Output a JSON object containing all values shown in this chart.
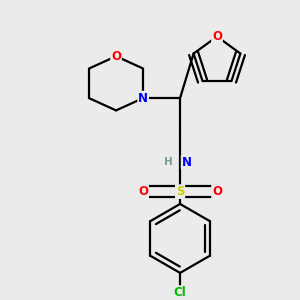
{
  "background_color": "#ebebeb",
  "atom_colors": {
    "O": "#ff0000",
    "N": "#0000ff",
    "S": "#cccc00",
    "Cl": "#00bb00",
    "C": "#000000",
    "H": "#7a9a9a"
  },
  "bond_color": "#000000",
  "bond_width": 1.6,
  "font_size_atoms": 8.5,
  "figsize": [
    3.0,
    3.0
  ],
  "dpi": 100
}
